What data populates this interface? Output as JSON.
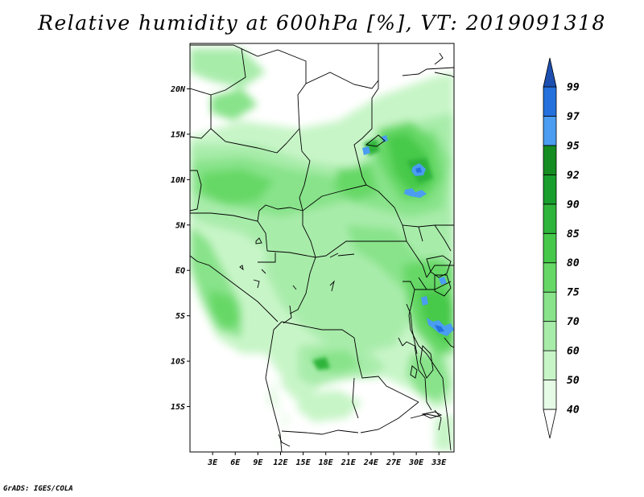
{
  "title": "Relative humidity at 600hPa [%], VT: 2019091318",
  "credit": "GrADS: IGES/COLA",
  "map": {
    "lon_range": [
      0,
      35
    ],
    "lat_range": [
      -20,
      25
    ],
    "lat_ticks": [
      "20N",
      "15N",
      "10N",
      "5N",
      "EQ",
      "5S",
      "10S",
      "15S"
    ],
    "lon_ticks": [
      "3E",
      "6E",
      "9E",
      "12E",
      "15E",
      "18E",
      "21E",
      "24E",
      "27E",
      "30E",
      "33E"
    ]
  },
  "colorbar": {
    "levels": [
      "40",
      "50",
      "60",
      "70",
      "75",
      "80",
      "85",
      "90",
      "92",
      "95",
      "97",
      "99"
    ],
    "colors": [
      "#ffffff",
      "#e6fbe6",
      "#c8f5c8",
      "#a8ecaa",
      "#88e38a",
      "#66d866",
      "#46c94a",
      "#2eb43a",
      "#179e2c",
      "#148c22",
      "#4a9df0",
      "#2471dd",
      "#1d4fb0"
    ]
  }
}
